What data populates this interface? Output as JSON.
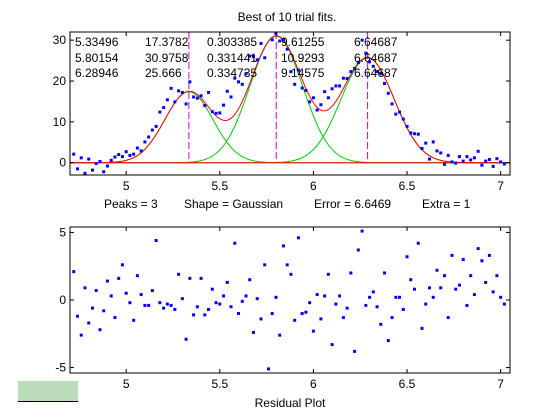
{
  "colors": {
    "data_points": "#0000ff",
    "sum_fit": "#ff0000",
    "component_fit": "#00cc00",
    "peak_marker": "#cc00cc",
    "baseline": "#ff0000",
    "corner_swatch": "#bcdcbc"
  },
  "top_plot": {
    "title": "Best of 10 trial fits.",
    "status": {
      "peaks": "Peaks = 3",
      "shape": "Shape = Gaussian",
      "error": "Error = 6.6469",
      "extra": "Extra = 1"
    },
    "results_table": [
      [
        "5.33496",
        "17.3782",
        "0.303385",
        "9.61255",
        "6.64687"
      ],
      [
        "5.80154",
        "30.9758",
        "0.331441",
        "10.9293",
        "6.64687"
      ],
      [
        "6.28946",
        "25.666",
        "0.334735",
        "9.14575",
        "6.64687"
      ]
    ]
  },
  "bottom_plot": {
    "xlabel": "Residual Plot"
  },
  "chart_data": [
    {
      "type": "scatter",
      "panel": "peak fit",
      "title": "Best of 10 trial fits.",
      "xlim": [
        4.7,
        7.05
      ],
      "ylim": [
        -3,
        32
      ],
      "xticks": [
        5,
        5.5,
        6,
        6.5,
        7
      ],
      "xtick_labels": [
        "5",
        "5.5",
        "6",
        "6.5",
        "7"
      ],
      "yticks": [
        0,
        10,
        20,
        30
      ],
      "ytick_labels": [
        "0",
        "10",
        "20",
        "30"
      ],
      "grid": false,
      "legend": "none",
      "baseline": 0,
      "peaks": [
        {
          "position": 5.33496,
          "height": 17.3782,
          "width": 0.303385,
          "area": 9.61255
        },
        {
          "position": 5.80154,
          "height": 30.9758,
          "width": 0.331441,
          "area": 10.9293
        },
        {
          "position": 6.28946,
          "height": 25.666,
          "width": 0.334735,
          "area": 9.14575
        }
      ],
      "series": [
        {
          "kind": "data",
          "x": [
            4.72,
            4.74,
            4.76,
            4.78,
            4.8,
            4.82,
            4.84,
            4.86,
            4.88,
            4.9,
            4.92,
            4.94,
            4.96,
            4.98,
            5.0,
            5.02,
            5.04,
            5.06,
            5.08,
            5.1,
            5.12,
            5.14,
            5.16,
            5.18,
            5.2,
            5.22,
            5.24,
            5.26,
            5.28,
            5.3,
            5.32,
            5.34,
            5.36,
            5.38,
            5.4,
            5.42,
            5.44,
            5.46,
            5.48,
            5.5,
            5.52,
            5.54,
            5.56,
            5.58,
            5.6,
            5.62,
            5.64,
            5.66,
            5.68,
            5.7,
            5.72,
            5.74,
            5.76,
            5.78,
            5.8,
            5.82,
            5.84,
            5.86,
            5.88,
            5.9,
            5.92,
            5.94,
            5.96,
            5.98,
            6.0,
            6.02,
            6.04,
            6.06,
            6.08,
            6.1,
            6.12,
            6.14,
            6.16,
            6.18,
            6.2,
            6.22,
            6.24,
            6.26,
            6.28,
            6.3,
            6.32,
            6.34,
            6.36,
            6.38,
            6.4,
            6.42,
            6.44,
            6.46,
            6.48,
            6.5,
            6.52,
            6.54,
            6.56,
            6.58,
            6.6,
            6.62,
            6.64,
            6.66,
            6.68,
            6.7,
            6.72,
            6.74,
            6.76,
            6.78,
            6.8,
            6.82,
            6.84,
            6.86,
            6.88,
            6.9,
            6.92,
            6.94,
            6.96,
            6.98,
            7.0,
            7.02
          ],
          "y": [
            2.1,
            -1.5,
            1.2,
            -2.6,
            0.9,
            -1.8,
            -0.2,
            0.3,
            -2.2,
            -0.8,
            0.6,
            1.4,
            2.0,
            1.5,
            2.7,
            1.8,
            2.1,
            3.6,
            2.9,
            5.1,
            6.3,
            8.0,
            8.9,
            12.4,
            13.5,
            15.4,
            18.2,
            14.9,
            17.6,
            17.2,
            14.4,
            19.8,
            16.1,
            15.8,
            16.4,
            14.0,
            17.2,
            12.5,
            12.1,
            12.2,
            14.1,
            17.5,
            16.1,
            20.7,
            19.8,
            19.2,
            21.8,
            26.1,
            26.0,
            25.2,
            29.2,
            25.7,
            32.6,
            30.1,
            31.6,
            29.8,
            30.1,
            27.8,
            22.3,
            19.2,
            22.7,
            18.3,
            17.7,
            14.9,
            15.9,
            12.9,
            14.2,
            17.4,
            15.9,
            18.1,
            18.8,
            18.8,
            20.7,
            20.6,
            22.3,
            23.1,
            24.5,
            30.0,
            26.8,
            24.7,
            23.6,
            22.3,
            21.8,
            19.4,
            17.0,
            14.4,
            11.9,
            12.4,
            10.7,
            8.9,
            7.3,
            7.1,
            7.0,
            3.5,
            4.8,
            0.9,
            5.1,
            2.9,
            2.4,
            -0.4,
            1.8,
            0.2,
            -0.1,
            1.5,
            0.4,
            1.5,
            0.7,
            1.2,
            2.8,
            -0.6,
            0.4,
            0.8,
            -0.9,
            1.0,
            0.2,
            -0.3
          ]
        },
        {
          "kind": "sum fit"
        },
        {
          "kind": "component fits"
        },
        {
          "kind": "peak markers"
        }
      ]
    },
    {
      "type": "scatter",
      "panel": "residuals",
      "xlabel": "Residual Plot",
      "xlim": [
        4.7,
        7.05
      ],
      "ylim": [
        -5.4,
        5.4
      ],
      "xticks": [
        5,
        5.5,
        6,
        6.5,
        7
      ],
      "xtick_labels": [
        "5",
        "5.5",
        "6",
        "6.5",
        "7"
      ],
      "yticks": [
        -5,
        0,
        5
      ],
      "ytick_labels": [
        "-5",
        "0",
        "5"
      ],
      "grid": false,
      "legend": "none",
      "series": [
        {
          "kind": "residuals",
          "x": [
            4.72,
            4.74,
            4.76,
            4.78,
            4.8,
            4.82,
            4.84,
            4.86,
            4.88,
            4.9,
            4.92,
            4.94,
            4.96,
            4.98,
            5.0,
            5.02,
            5.04,
            5.06,
            5.08,
            5.1,
            5.12,
            5.14,
            5.16,
            5.18,
            5.2,
            5.22,
            5.24,
            5.26,
            5.28,
            5.3,
            5.32,
            5.34,
            5.36,
            5.38,
            5.4,
            5.42,
            5.44,
            5.46,
            5.48,
            5.5,
            5.52,
            5.54,
            5.56,
            5.58,
            5.6,
            5.62,
            5.64,
            5.66,
            5.68,
            5.7,
            5.72,
            5.74,
            5.76,
            5.78,
            5.8,
            5.82,
            5.84,
            5.86,
            5.88,
            5.9,
            5.92,
            5.94,
            5.96,
            5.98,
            6.0,
            6.02,
            6.04,
            6.06,
            6.08,
            6.1,
            6.12,
            6.14,
            6.16,
            6.18,
            6.2,
            6.22,
            6.24,
            6.26,
            6.28,
            6.3,
            6.32,
            6.34,
            6.36,
            6.38,
            6.4,
            6.42,
            6.44,
            6.46,
            6.48,
            6.5,
            6.52,
            6.54,
            6.56,
            6.58,
            6.6,
            6.62,
            6.64,
            6.66,
            6.68,
            6.7,
            6.72,
            6.74,
            6.76,
            6.78,
            6.8,
            6.82,
            6.84,
            6.86,
            6.88,
            6.9,
            6.92,
            6.94,
            6.96,
            6.98,
            7.0,
            7.02
          ],
          "y": [
            2.1,
            -1.2,
            -2.6,
            0.9,
            -1.7,
            -0.6,
            0.7,
            -2.2,
            -0.8,
            1.4,
            0.3,
            -1.3,
            1.6,
            2.6,
            0.5,
            -0.2,
            -1.5,
            1.8,
            0.4,
            -0.4,
            -0.4,
            0.7,
            4.4,
            -0.2,
            -0.6,
            -0.3,
            -0.4,
            -0.7,
            1.9,
            0.1,
            -2.9,
            1.6,
            -1.1,
            -0.5,
            1.6,
            -1.1,
            -0.7,
            0.8,
            -0.2,
            -0.3,
            0.3,
            1.3,
            -0.5,
            4.2,
            -1.0,
            -0.1,
            0.3,
            1.5,
            -2.4,
            0.1,
            -1.4,
            2.6,
            -5.1,
            -1.0,
            0.2,
            -2.6,
            4.0,
            2.6,
            1.9,
            -1.5,
            4.6,
            -1.0,
            -0.9,
            -0.2,
            -2.3,
            0.4,
            -1.4,
            0.3,
            1.9,
            -3.3,
            -0.3,
            0.3,
            -1.3,
            -0.6,
            2.0,
            -3.8,
            3.7,
            5.1,
            -0.4,
            0.2,
            0.6,
            -0.5,
            -1.8,
            2.0,
            -3.0,
            -1.3,
            0.2,
            0.2,
            -0.7,
            3.2,
            1.5,
            0.8,
            4.2,
            -2.1,
            -0.3,
            0.9,
            0.2,
            2.2,
            0.9,
            1.8,
            -1.3,
            3.3,
            0.8,
            1.1,
            3.0,
            -0.4,
            1.8,
            0.4,
            3.8,
            2.9,
            1.3,
            3.3,
            0.6,
            1.8,
            0.2,
            -0.3
          ]
        }
      ]
    }
  ]
}
